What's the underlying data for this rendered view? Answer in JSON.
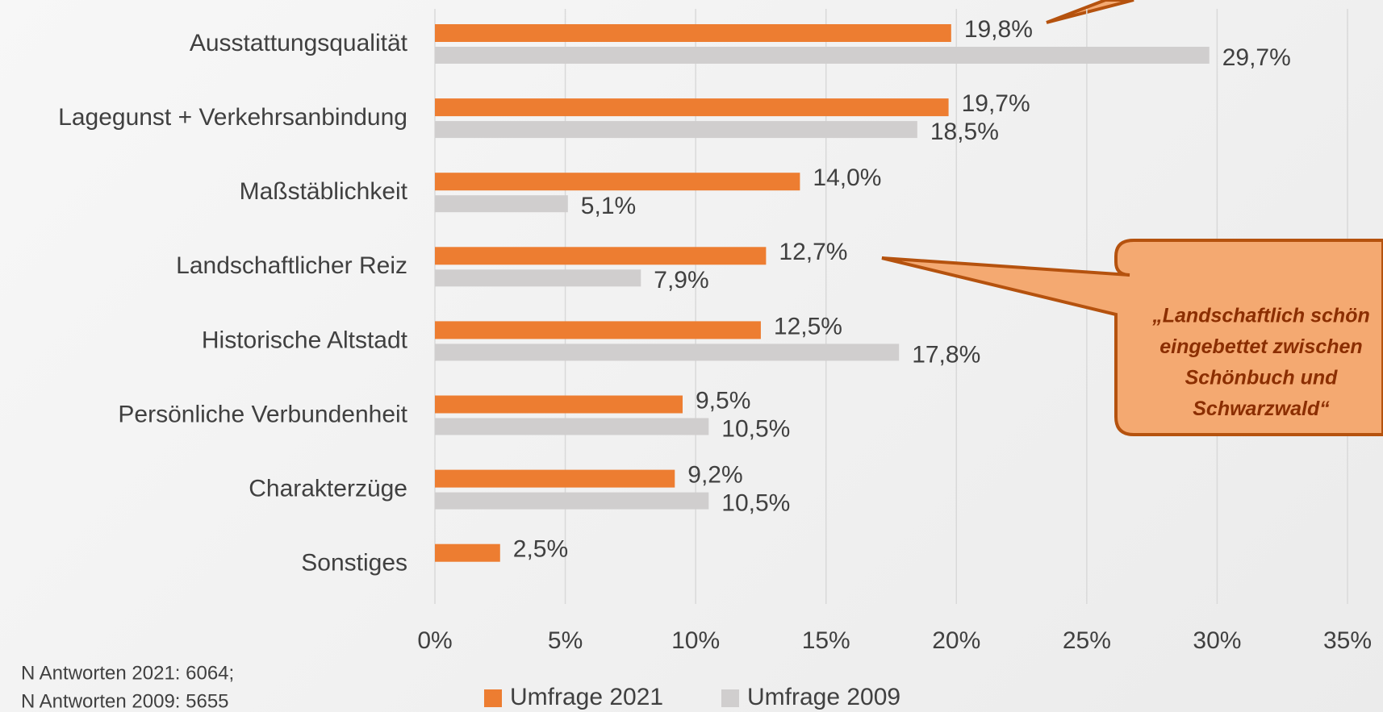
{
  "chart_data": {
    "type": "hbar",
    "categories": [
      "Ausstattungsqualität",
      "Lagegunst + Verkehrsanbindung",
      "Maßstäblichkeit",
      "Landschaftlicher Reiz",
      "Historische Altstadt",
      "Persönliche Verbundenheit",
      "Charakterzüge",
      "Sonstiges"
    ],
    "series": [
      {
        "name": "Umfrage 2021",
        "color": "#ed7d31",
        "values": [
          19.8,
          19.7,
          14.0,
          12.7,
          12.5,
          9.5,
          9.2,
          2.5
        ],
        "value_labels": [
          "19,8%",
          "19,7%",
          "14,0%",
          "12,7%",
          "12,5%",
          "9,5%",
          "9,2%",
          "2,5%"
        ]
      },
      {
        "name": "Umfrage 2009",
        "color": "#d0cece",
        "values": [
          29.7,
          18.5,
          5.1,
          7.9,
          17.8,
          10.5,
          10.5,
          null
        ],
        "value_labels": [
          "29,7%",
          "18,5%",
          "5,1%",
          "7,9%",
          "17,8%",
          "10,5%",
          "10,5%",
          null
        ]
      }
    ],
    "xlim": [
      0,
      35
    ],
    "xticks": [
      {
        "value": 0,
        "label": "0%"
      },
      {
        "value": 5,
        "label": "5%"
      },
      {
        "value": 10,
        "label": "10%"
      },
      {
        "value": 15,
        "label": "15%"
      },
      {
        "value": 20,
        "label": "20%"
      },
      {
        "value": 25,
        "label": "25%"
      },
      {
        "value": 30,
        "label": "30%"
      },
      {
        "value": 35,
        "label": "35%"
      }
    ],
    "grid": true,
    "legend": "bottom",
    "annotation": {
      "lines": [
        "„Landschaftlich schön",
        "eingebettet zwischen",
        "Schönbuch und",
        "Schwarzwald“"
      ]
    },
    "notes": [
      "N Antworten 2021: 6064;",
      "N Antworten 2009: 5655"
    ]
  }
}
